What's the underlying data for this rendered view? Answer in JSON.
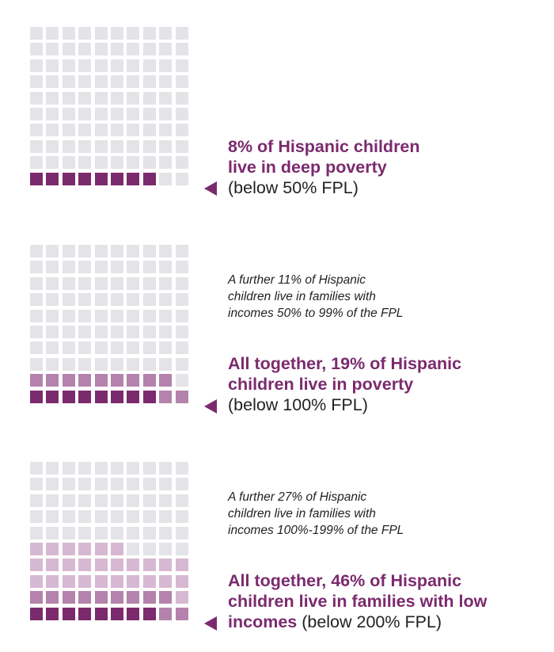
{
  "colors": {
    "empty": "#e4e4e8",
    "deep_poverty": "#7b2a6e",
    "poverty_50_99": "#b482ac",
    "low_income_100_199": "#d7b8d2"
  },
  "chart_data": [
    {
      "type": "waffle",
      "grid": {
        "rows": 10,
        "cols": 10
      },
      "series": [
        {
          "label": "below 50% FPL",
          "value": 8,
          "color_key": "deep_poverty"
        }
      ],
      "total": 8,
      "headline": {
        "line1_bold": "8% of Hispanic children",
        "line2_bold": "live in deep poverty",
        "line3_plain": "(below 50% FPL)"
      }
    },
    {
      "type": "waffle",
      "grid": {
        "rows": 10,
        "cols": 10
      },
      "series": [
        {
          "label": "below 50% FPL",
          "value": 8,
          "color_key": "deep_poverty"
        },
        {
          "label": "50% to 99% of the FPL",
          "value": 11,
          "color_key": "poverty_50_99"
        }
      ],
      "total": 19,
      "note": [
        "A further 11% of Hispanic",
        "children live in families with",
        "incomes 50% to 99% of the FPL"
      ],
      "headline": {
        "line1_bold": "All together, 19% of Hispanic",
        "line2_bold": "children live in poverty",
        "line3_plain": "(below 100% FPL)"
      }
    },
    {
      "type": "waffle",
      "grid": {
        "rows": 10,
        "cols": 10
      },
      "series": [
        {
          "label": "below 50% FPL",
          "value": 8,
          "color_key": "deep_poverty"
        },
        {
          "label": "50% to 99% of the FPL",
          "value": 11,
          "color_key": "poverty_50_99"
        },
        {
          "label": "100%-199% of the FPL",
          "value": 27,
          "color_key": "low_income_100_199"
        }
      ],
      "total": 46,
      "note": [
        "A further 27% of Hispanic",
        "children live in families with",
        "incomes 100%-199% of the FPL"
      ],
      "headline": {
        "line1_bold": "All together, 46% of Hispanic",
        "line2_bold": "children live in families with low",
        "line3_bold": "incomes",
        "line3_plain": " (below 200% FPL)"
      }
    }
  ]
}
